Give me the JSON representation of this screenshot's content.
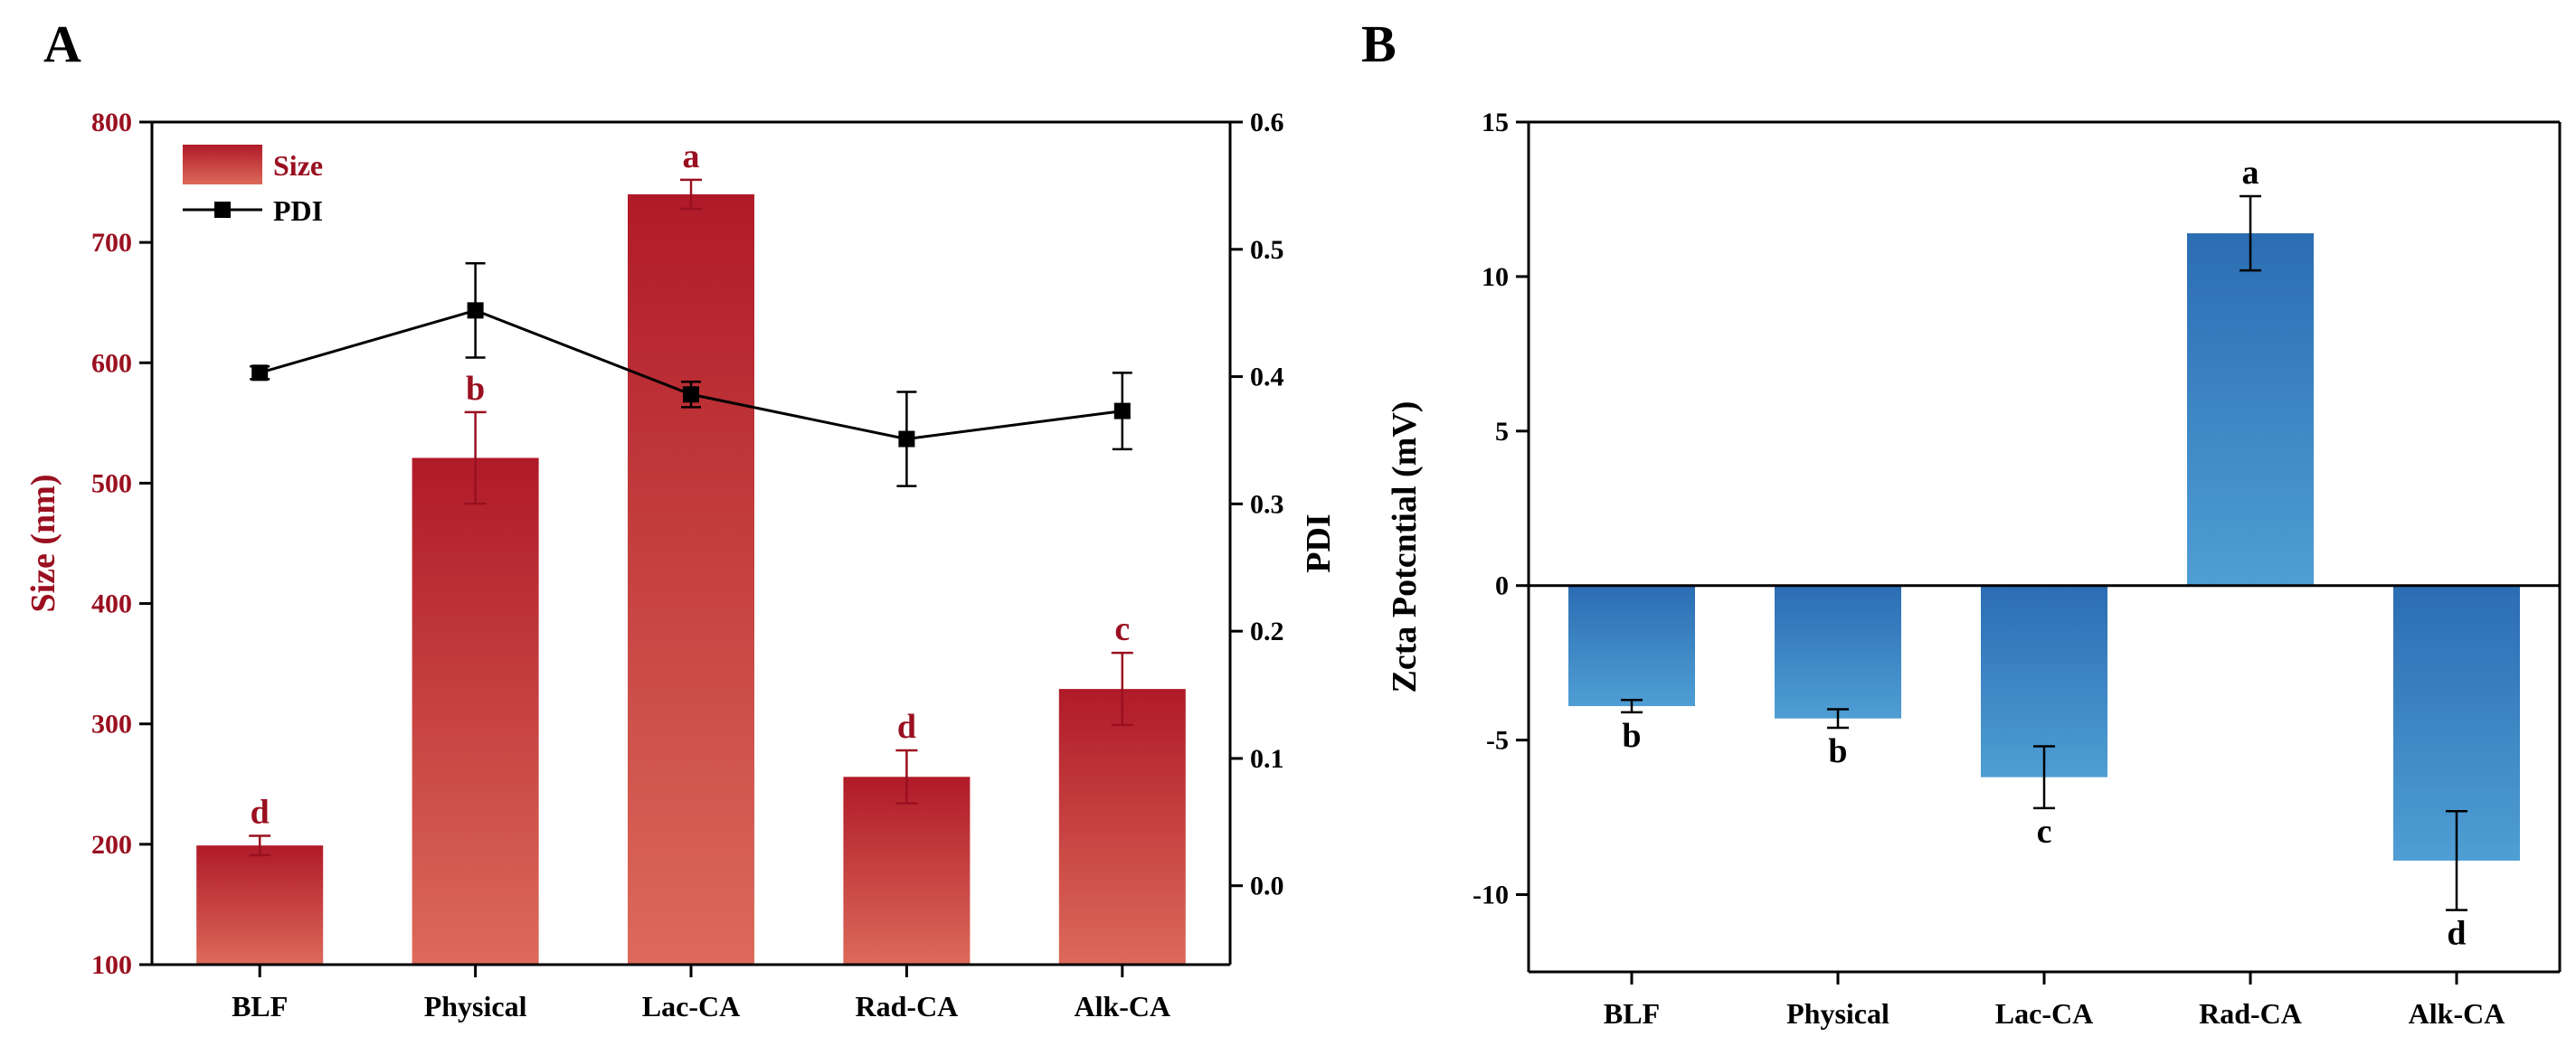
{
  "colors": {
    "size_top": "#b01a28",
    "size_bottom": "#dc6a5a",
    "size_text": "#9a1020",
    "zeta_top": "#2b6db3",
    "zeta_bottom": "#4f9ed4",
    "axis": "#000000",
    "pdi_line": "#000000"
  },
  "chart_data": [
    {
      "panel": "A",
      "type": "bar",
      "categories": [
        "BLF",
        "Physical",
        "Lac-CA",
        "Rad-CA",
        "Alk-CA"
      ],
      "series": [
        {
          "name": "Size",
          "axis": "left",
          "values": [
            199,
            521,
            740,
            256,
            329
          ],
          "errors": [
            8,
            38,
            12,
            22,
            30
          ],
          "letters": [
            "d",
            "b",
            "a",
            "d",
            "c"
          ]
        },
        {
          "name": "PDI",
          "type": "line",
          "axis": "right",
          "values": [
            0.403,
            0.452,
            0.386,
            0.351,
            0.373
          ],
          "errors": [
            0.005,
            0.037,
            0.01,
            0.037,
            0.03
          ]
        }
      ],
      "ylabel": "Size (nm)",
      "y2label": "PDI",
      "ylim": [
        100,
        800
      ],
      "yticks": [
        "100",
        "200",
        "300",
        "400",
        "500",
        "600",
        "700",
        "800"
      ],
      "y2lim": [
        -0.062,
        0.6
      ],
      "y2ticks": [
        "0.0",
        "0.1",
        "0.2",
        "0.3",
        "0.4",
        "0.5",
        "0.6"
      ],
      "legend": "top-left"
    },
    {
      "panel": "B",
      "type": "bar",
      "categories": [
        "BLF",
        "Physical",
        "Lac-CA",
        "Rad-CA",
        "Alk-CA"
      ],
      "series": [
        {
          "name": "Zeta Potential",
          "values": [
            -3.9,
            -4.3,
            -6.2,
            11.4,
            -8.9
          ],
          "errors": [
            0.2,
            0.3,
            1.0,
            1.2,
            1.6
          ],
          "letters": [
            "b",
            "b",
            "c",
            "a",
            "d"
          ]
        }
      ],
      "ylabel": "Zcta Potcntial (mV)",
      "ylim": [
        -12.5,
        15
      ],
      "yticks": [
        "-10",
        "-5",
        "0",
        "5",
        "10",
        "15"
      ],
      "legend": "none"
    }
  ]
}
